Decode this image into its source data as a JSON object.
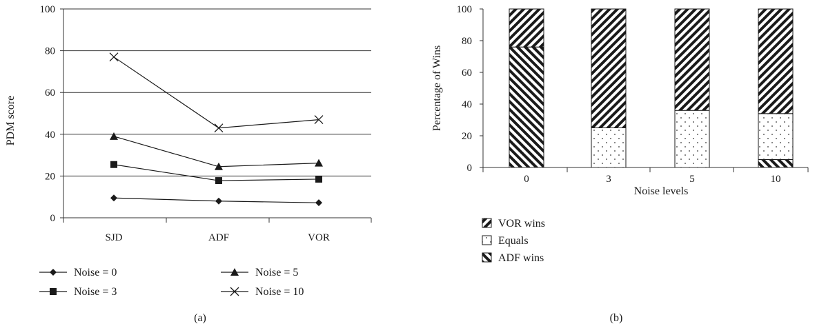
{
  "chart_data": [
    {
      "type": "line",
      "caption": "(a)",
      "categories": [
        "SJD",
        "ADF",
        "VOR"
      ],
      "ylabel": "PDM score",
      "ylim": [
        0,
        100
      ],
      "yticks": [
        0,
        20,
        40,
        60,
        80,
        100
      ],
      "grid": true,
      "legend_placement": "bottom",
      "series": [
        {
          "name": "Noise = 0",
          "marker": "diamond",
          "values": [
            9.5,
            8,
            7.2
          ]
        },
        {
          "name": "Noise = 3",
          "marker": "square",
          "values": [
            25.5,
            17.8,
            18.5
          ]
        },
        {
          "name": "Noise = 5",
          "marker": "triangle",
          "values": [
            39,
            24.5,
            26.2
          ]
        },
        {
          "name": "Noise = 10",
          "marker": "x",
          "values": [
            77,
            43,
            47
          ]
        }
      ]
    },
    {
      "type": "bar",
      "stacked": true,
      "caption": "(b)",
      "categories": [
        "0",
        "3",
        "5",
        "10"
      ],
      "xlabel": "Noise levels",
      "ylabel": "Percentage of Wins",
      "ylim": [
        0,
        100
      ],
      "yticks": [
        0,
        20,
        40,
        60,
        80,
        100
      ],
      "legend_placement": "bottom-left",
      "series": [
        {
          "name": "ADF wins",
          "pattern": "backslash-hatch",
          "values": [
            76,
            0,
            0,
            5
          ]
        },
        {
          "name": "Equals",
          "pattern": "dots",
          "values": [
            0,
            25,
            36,
            29
          ]
        },
        {
          "name": "VOR wins",
          "pattern": "slash-hatch",
          "values": [
            24,
            75,
            64,
            66
          ]
        }
      ],
      "legend_order": [
        "VOR wins",
        "Equals",
        "ADF wins"
      ]
    }
  ]
}
